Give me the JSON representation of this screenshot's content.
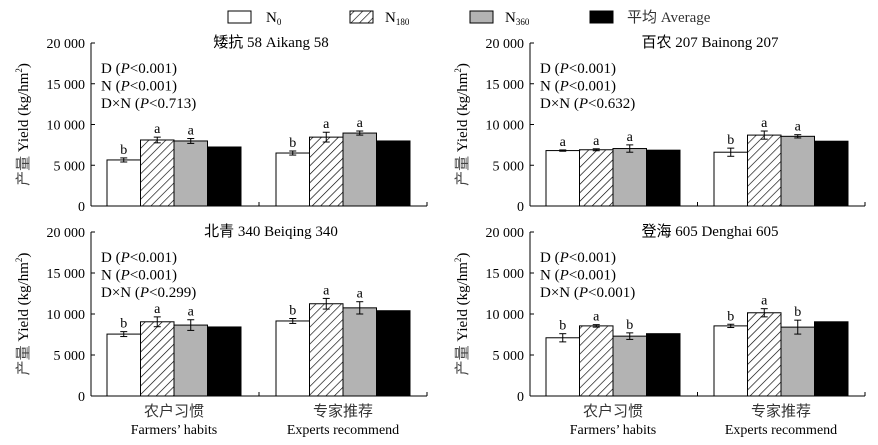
{
  "chart_data": {
    "type": "bar",
    "title": "",
    "legend": {
      "placement": "top",
      "entries": [
        {
          "key": "N0",
          "label_main": "N",
          "label_sub": "0",
          "fill": "#ffffff",
          "pattern": "none"
        },
        {
          "key": "N180",
          "label_main": "N",
          "label_sub": "180",
          "fill": "#ffffff",
          "pattern": "hatch"
        },
        {
          "key": "N360",
          "label_main": "N",
          "label_sub": "360",
          "fill": "#b3b3b3",
          "pattern": "none"
        },
        {
          "key": "Average",
          "label_main": "平均 Average",
          "label_sub": "",
          "fill": "#000000",
          "pattern": "none"
        }
      ]
    },
    "categories": [
      {
        "cn": "农户习惯",
        "en": "Farmers’ habits"
      },
      {
        "cn": "专家推荐",
        "en": "Experts recommend"
      }
    ],
    "ylabel": "产量 Yield (kg/hm²)",
    "ylabel_cn": "产量",
    "ylabel_en": "Yield (kg/hm",
    "ylabel_sup": "2",
    "ylabel_close": ")",
    "ylim": [
      0,
      20000
    ],
    "yticks": [
      0,
      5000,
      10000,
      15000,
      20000
    ],
    "ytick_labels": [
      "0",
      "5 000",
      "10 000",
      "15 000",
      "20 000"
    ],
    "grid": false,
    "panels": [
      {
        "title": "矮抗 58  Aikang 58",
        "stats": [
          "D (P<0.001)",
          "N (P<0.001)",
          "D×N (P<0.713)"
        ],
        "stats_parts": [
          {
            "pre": "D (",
            "p": "P",
            "post": "<0.001)"
          },
          {
            "pre": "N (",
            "p": "P",
            "post": "<0.001)"
          },
          {
            "pre": "D×N (",
            "p": "P",
            "post": "<0.713)"
          }
        ],
        "groups": [
          {
            "values": [
              5650,
              8100,
              7980,
              7240
            ],
            "errors": [
              250,
              350,
              300,
              0
            ],
            "letters": [
              "b",
              "a",
              "a",
              ""
            ]
          },
          {
            "values": [
              6500,
              8450,
              8950,
              7980
            ],
            "errors": [
              250,
              600,
              250,
              0
            ],
            "letters": [
              "b",
              "a",
              "a",
              ""
            ]
          }
        ]
      },
      {
        "title": "百农 207  Bainong 207",
        "stats": [
          "D (P<0.001)",
          "N (P<0.001)",
          "D×N (P<0.632)"
        ],
        "stats_parts": [
          {
            "pre": "D (",
            "p": "P",
            "post": "<0.001)"
          },
          {
            "pre": "N (",
            "p": "P",
            "post": "<0.001)"
          },
          {
            "pre": "D×N (",
            "p": "P",
            "post": "<0.632)"
          }
        ],
        "groups": [
          {
            "values": [
              6800,
              6900,
              7050,
              6850
            ],
            "errors": [
              80,
              120,
              450,
              0
            ],
            "letters": [
              "a",
              "a",
              "a",
              ""
            ]
          },
          {
            "values": [
              6600,
              8700,
              8550,
              7950
            ],
            "errors": [
              500,
              500,
              200,
              0
            ],
            "letters": [
              "b",
              "a",
              "a",
              ""
            ]
          }
        ]
      },
      {
        "title": "北青 340  Beiqing 340",
        "stats": [
          "D (P<0.001)",
          "N (P<0.001)",
          "D×N (P<0.299)"
        ],
        "stats_parts": [
          {
            "pre": "D (",
            "p": "P",
            "post": "<0.001)"
          },
          {
            "pre": "N (",
            "p": "P",
            "post": "<0.001)"
          },
          {
            "pre": "D×N (",
            "p": "P",
            "post": "<0.299)"
          }
        ],
        "groups": [
          {
            "values": [
              7550,
              9050,
              8650,
              8420
            ],
            "errors": [
              300,
              600,
              650,
              0
            ],
            "letters": [
              "b",
              "a",
              "a",
              ""
            ]
          },
          {
            "values": [
              9150,
              11250,
              10750,
              10400
            ],
            "errors": [
              300,
              650,
              750,
              0
            ],
            "letters": [
              "b",
              "a",
              "a",
              ""
            ]
          }
        ]
      },
      {
        "title": "登海 605  Denghai 605",
        "stats": [
          "D (P<0.001)",
          "N (P<0.001)",
          "D×N (P<0.001)"
        ],
        "stats_parts": [
          {
            "pre": "D (",
            "p": "P",
            "post": "<0.001)"
          },
          {
            "pre": "N (",
            "p": "P",
            "post": "<0.001)"
          },
          {
            "pre": "D×N (",
            "p": "P",
            "post": "<0.001)"
          }
        ],
        "groups": [
          {
            "values": [
              7100,
              8550,
              7300,
              7600
            ],
            "errors": [
              500,
              150,
              400,
              0
            ],
            "letters": [
              "b",
              "a",
              "b",
              ""
            ]
          },
          {
            "values": [
              8550,
              10150,
              8400,
              9050
            ],
            "errors": [
              200,
              500,
              850,
              0
            ],
            "letters": [
              "b",
              "a",
              "b",
              ""
            ]
          }
        ]
      }
    ]
  }
}
